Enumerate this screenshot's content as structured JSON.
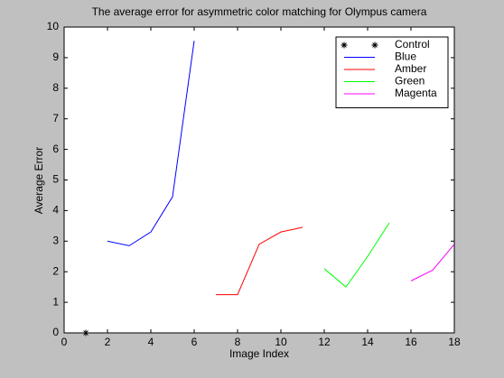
{
  "chart_data": {
    "type": "line",
    "title": "The average error for asymmetric color matching for Olympus camera",
    "x_label": "Image Index",
    "y_label": "Average Error",
    "xlim": [
      0,
      18
    ],
    "xticks": [
      0,
      2,
      4,
      6,
      8,
      10,
      12,
      14,
      16,
      18
    ],
    "ylim": [
      0,
      10
    ],
    "yticks": [
      0,
      1,
      2,
      3,
      4,
      5,
      6,
      7,
      8,
      9,
      10
    ],
    "legend_position": "upper right",
    "series": [
      {
        "name": "Control",
        "color": "#000000",
        "style": "marker",
        "x": [
          1
        ],
        "values": [
          0
        ]
      },
      {
        "name": "Blue",
        "color": "#0000ff",
        "style": "line",
        "x": [
          2,
          3,
          4,
          5,
          6
        ],
        "values": [
          3.0,
          2.85,
          3.3,
          4.45,
          9.55
        ]
      },
      {
        "name": "Amber",
        "color": "#ff0000",
        "style": "line",
        "x": [
          7,
          8,
          9,
          10,
          11
        ],
        "values": [
          1.25,
          1.25,
          2.9,
          3.3,
          3.45
        ]
      },
      {
        "name": "Green",
        "color": "#00ff00",
        "style": "line",
        "x": [
          12,
          13,
          14,
          15
        ],
        "values": [
          2.1,
          1.5,
          2.5,
          3.6
        ]
      },
      {
        "name": "Magenta",
        "color": "#ff00ff",
        "style": "line",
        "x": [
          16,
          17,
          18
        ],
        "values": [
          1.7,
          2.05,
          2.9
        ]
      }
    ]
  }
}
